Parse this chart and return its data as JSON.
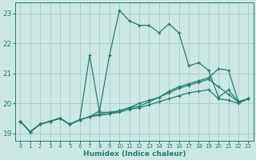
{
  "background_color": "#cce8e4",
  "grid_color": "#aaccca",
  "line_color": "#2a7a6a",
  "xlabel": "Humidex (Indice chaleur)",
  "xlim": [
    -0.5,
    23.5
  ],
  "ylim": [
    18.75,
    23.35
  ],
  "yticks": [
    19,
    20,
    21,
    22,
    23
  ],
  "xticks": [
    0,
    1,
    2,
    3,
    4,
    5,
    6,
    7,
    8,
    9,
    10,
    11,
    12,
    13,
    14,
    15,
    16,
    17,
    18,
    19,
    20,
    21,
    22,
    23
  ],
  "series": [
    {
      "x": [
        0,
        1,
        2,
        3,
        4,
        5,
        6,
        7,
        8,
        9,
        10,
        11,
        12,
        13,
        14,
        15,
        16,
        17,
        18,
        19,
        20,
        21,
        22,
        23
      ],
      "y": [
        19.4,
        19.05,
        19.3,
        19.4,
        19.5,
        19.3,
        19.45,
        19.55,
        19.75,
        21.6,
        23.1,
        22.75,
        22.6,
        22.6,
        22.35,
        22.65,
        22.35,
        21.25,
        21.35,
        21.1,
        20.2,
        20.45,
        20.05,
        20.15
      ]
    },
    {
      "x": [
        0,
        1,
        2,
        3,
        4,
        5,
        6,
        7,
        8,
        9,
        10,
        11,
        12,
        13,
        14,
        15,
        16,
        17,
        18,
        19,
        20,
        21,
        22,
        23
      ],
      "y": [
        19.4,
        19.05,
        19.3,
        19.4,
        19.5,
        19.3,
        19.45,
        21.6,
        19.7,
        19.7,
        19.75,
        19.85,
        20.0,
        20.1,
        20.2,
        20.4,
        20.55,
        20.65,
        20.75,
        20.85,
        21.15,
        21.1,
        20.05,
        20.15
      ]
    },
    {
      "x": [
        0,
        1,
        2,
        3,
        4,
        5,
        6,
        7,
        8,
        9,
        10,
        11,
        12,
        13,
        14,
        15,
        16,
        17,
        18,
        19,
        20,
        21,
        22,
        23
      ],
      "y": [
        19.4,
        19.05,
        19.3,
        19.4,
        19.5,
        19.3,
        19.45,
        19.55,
        19.65,
        19.65,
        19.75,
        19.85,
        19.9,
        20.05,
        20.2,
        20.35,
        20.5,
        20.6,
        20.7,
        20.8,
        20.55,
        20.3,
        20.05,
        20.15
      ]
    },
    {
      "x": [
        0,
        1,
        2,
        3,
        4,
        5,
        6,
        7,
        8,
        9,
        10,
        11,
        12,
        13,
        14,
        15,
        16,
        17,
        18,
        19,
        20,
        21,
        22,
        23
      ],
      "y": [
        19.4,
        19.05,
        19.3,
        19.4,
        19.5,
        19.3,
        19.45,
        19.55,
        19.6,
        19.65,
        19.7,
        19.8,
        19.85,
        19.95,
        20.05,
        20.15,
        20.25,
        20.35,
        20.4,
        20.45,
        20.15,
        20.1,
        20.0,
        20.15
      ]
    }
  ]
}
